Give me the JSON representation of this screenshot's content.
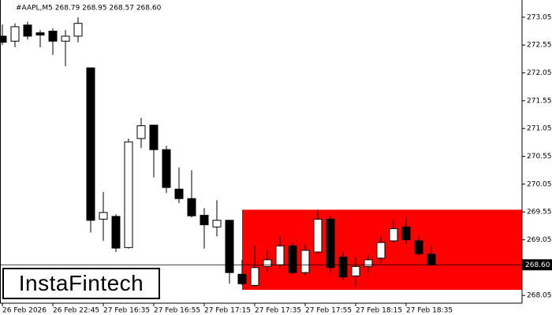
{
  "chart_data": {
    "type": "candlestick",
    "title": "#AAPL,M5  268.79 268.95 268.57 268.60",
    "categories": [
      "26 Feb 2026",
      null,
      null,
      null,
      "26 Feb 22:45",
      null,
      null,
      null,
      "27 Feb 16:35",
      null,
      null,
      null,
      "27 Feb 16:55",
      null,
      null,
      null,
      "27 Feb 17:15",
      null,
      null,
      null,
      "27 Feb 17:35",
      null,
      null,
      null,
      "27 Feb 17:55",
      null,
      null,
      null,
      "27 Feb 18:15",
      null,
      null,
      null,
      "27 Feb 18:35",
      null,
      null
    ],
    "open": [
      272.71,
      272.62,
      272.91,
      272.77,
      272.8,
      272.62,
      272.71,
      272.14,
      269.42,
      269.47,
      268.91,
      270.87,
      271.11,
      270.67,
      269.96,
      269.79,
      269.49,
      269.28,
      269.4,
      268.43,
      268.23,
      268.57,
      268.6,
      268.94,
      268.46,
      268.83,
      269.42,
      268.74,
      268.4,
      268.57,
      268.72,
      269.03,
      269.28,
      269.03,
      268.79
    ],
    "high": [
      272.92,
      272.94,
      272.97,
      272.82,
      272.85,
      272.82,
      273.05,
      272.14,
      269.91,
      269.51,
      270.87,
      271.24,
      271.12,
      270.74,
      270.35,
      270.3,
      269.62,
      269.76,
      269.4,
      268.69,
      268.94,
      268.86,
      269.11,
      269.0,
      268.97,
      269.59,
      269.48,
      268.83,
      268.74,
      268.77,
      269.11,
      269.4,
      269.45,
      269.11,
      268.95
    ],
    "low": [
      272.55,
      272.51,
      272.65,
      272.51,
      272.37,
      272.17,
      272.6,
      269.18,
      269.03,
      268.83,
      268.89,
      270.7,
      270.17,
      269.89,
      269.71,
      269.45,
      268.89,
      269.11,
      268.26,
      268.23,
      268.21,
      268.46,
      268.55,
      268.43,
      268.4,
      268.8,
      268.46,
      268.32,
      268.21,
      268.46,
      268.63,
      269.0,
      268.97,
      268.77,
      268.57
    ],
    "close": [
      272.6,
      272.88,
      272.71,
      272.73,
      272.62,
      272.71,
      272.94,
      269.4,
      269.54,
      268.9,
      270.81,
      271.1,
      270.67,
      269.99,
      269.79,
      269.48,
      269.32,
      269.4,
      268.46,
      268.26,
      268.55,
      268.69,
      268.94,
      268.46,
      268.86,
      269.42,
      268.55,
      268.38,
      268.57,
      268.69,
      269.0,
      269.25,
      269.05,
      268.8,
      268.6
    ],
    "ylim": [
      267.91,
      273.36
    ],
    "yticks": [
      273.05,
      272.55,
      272.05,
      271.55,
      271.05,
      270.55,
      270.05,
      269.55,
      269.05,
      268.55,
      268.05
    ],
    "current_price": {
      "value": 268.6,
      "label": "268.60"
    },
    "zone": {
      "ymin": 268.15,
      "ymax": 269.59,
      "start_index": 19,
      "color": "#ff0000"
    },
    "bull_color": "#ffffff",
    "bear_color": "#000000"
  },
  "watermark": "InstaFintech"
}
